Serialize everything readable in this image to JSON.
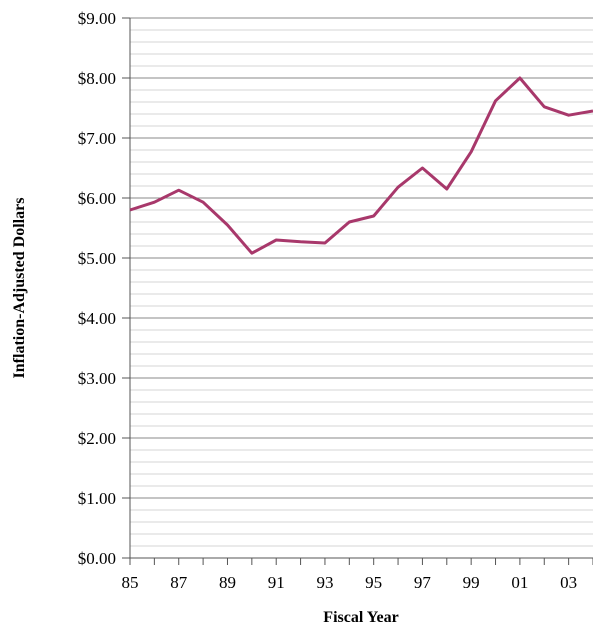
{
  "chart_data": {
    "type": "line",
    "x_label": "Fiscal Year",
    "y_label": "Inflation-Adjusted Dollars",
    "categories": [
      "85",
      null,
      "87",
      null,
      "89",
      null,
      "91",
      null,
      "93",
      null,
      "95",
      null,
      "97",
      null,
      "99",
      null,
      "01",
      null,
      "03",
      null
    ],
    "series": [
      {
        "name": "Inflation-Adjusted Dollars",
        "color": "#a8386b",
        "values": [
          5.8,
          5.93,
          6.13,
          5.93,
          5.55,
          5.08,
          5.3,
          5.27,
          5.25,
          5.6,
          5.7,
          6.18,
          6.5,
          6.15,
          6.77,
          7.62,
          8.0,
          7.52,
          7.38,
          7.45
        ]
      }
    ],
    "ylim": [
      0,
      9
    ],
    "yticks": [
      {
        "value": 0,
        "label": "$0.00"
      },
      {
        "value": 1,
        "label": "$1.00"
      },
      {
        "value": 2,
        "label": "$2.00"
      },
      {
        "value": 3,
        "label": "$3.00"
      },
      {
        "value": 4,
        "label": "$4.00"
      },
      {
        "value": 5,
        "label": "$5.00"
      },
      {
        "value": 6,
        "label": "$6.00"
      },
      {
        "value": 7,
        "label": "$7.00"
      },
      {
        "value": 8,
        "label": "$8.00"
      },
      {
        "value": 9,
        "label": "$9.00"
      }
    ],
    "grid": true
  }
}
